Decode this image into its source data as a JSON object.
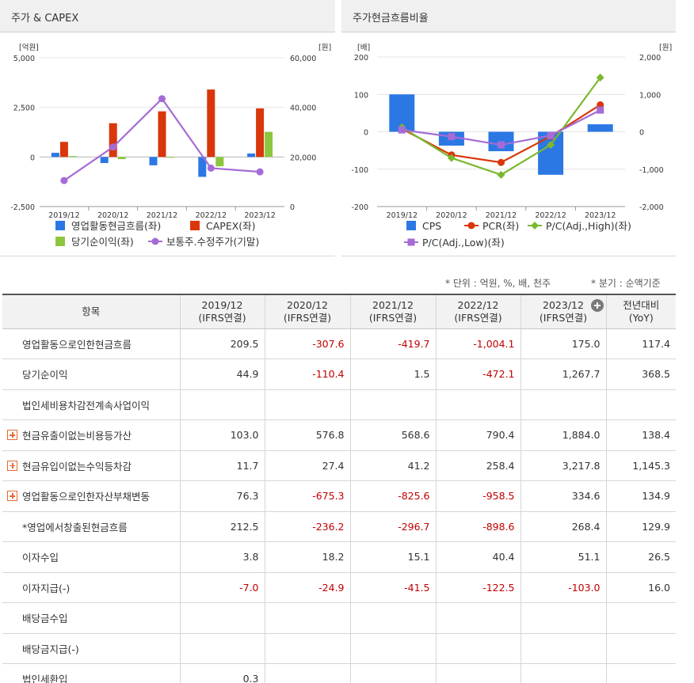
{
  "left_chart": {
    "title": "주가 & CAPEX",
    "chart_data": {
      "type": "bar",
      "categories": [
        "2019/12",
        "2020/12",
        "2021/12",
        "2022/12",
        "2023/12"
      ],
      "y_left": {
        "unit": "[억원]",
        "ticks": [
          "5,000",
          "2,500",
          "0",
          "-2,500"
        ],
        "range": [
          -2500,
          5000
        ]
      },
      "y_right": {
        "unit": "[원]",
        "ticks": [
          "60,000",
          "40,000",
          "20,000",
          "0"
        ],
        "range": [
          0,
          60000
        ]
      },
      "series": [
        {
          "name": "영업활동현금흐름(좌)",
          "type": "bar",
          "axis": "left",
          "color": "#2b78e4",
          "values": [
            209.5,
            -307.6,
            -419.7,
            -1004.1,
            175.0
          ]
        },
        {
          "name": "CAPEX(좌)",
          "type": "bar",
          "axis": "left",
          "color": "#d9360b",
          "values": [
            760,
            1700,
            2300,
            3400,
            2450
          ]
        },
        {
          "name": "당기순이익(좌)",
          "type": "bar",
          "axis": "left",
          "color": "#8cc63f",
          "values": [
            44.9,
            -110.4,
            1.5,
            -472.1,
            1267.7
          ]
        },
        {
          "name": "보통주.수정주가(기말)",
          "type": "line",
          "axis": "right",
          "color": "#a56bd6",
          "values": [
            10500,
            24000,
            43500,
            15500,
            14000
          ]
        }
      ]
    }
  },
  "right_chart": {
    "title": "주가현금흐름비율",
    "chart_data": {
      "type": "bar",
      "categories": [
        "2019/12",
        "2020/12",
        "2021/12",
        "2022/12",
        "2023/12"
      ],
      "y_left": {
        "unit": "[배]",
        "ticks": [
          "200",
          "100",
          "0",
          "-100",
          "-200"
        ],
        "range": [
          -200,
          200
        ]
      },
      "y_right": {
        "unit": "[원]",
        "ticks": [
          "2,000",
          "1,000",
          "0",
          "-1,000",
          "-2,000"
        ],
        "range": [
          -2000,
          2000
        ]
      },
      "series": [
        {
          "name": "CPS",
          "type": "bar",
          "axis": "right",
          "color": "#2b78e4",
          "values": [
            1000,
            -370,
            -520,
            -1150,
            200
          ]
        },
        {
          "name": "PCR(좌)",
          "type": "line",
          "axis": "left",
          "color": "#d9360b",
          "marker": "circle",
          "values": [
            8,
            -62,
            -82,
            -12,
            72
          ]
        },
        {
          "name": "P/C(Adj.,High)(좌)",
          "type": "line",
          "axis": "left",
          "color": "#7cb82f",
          "marker": "diamond",
          "values": [
            12,
            -70,
            -115,
            -35,
            145
          ]
        },
        {
          "name": "P/C(Adj.,Low)(좌)",
          "type": "line",
          "axis": "left",
          "color": "#a56bd6",
          "marker": "square",
          "values": [
            5,
            -13,
            -35,
            -10,
            58
          ]
        }
      ]
    }
  },
  "notes": {
    "unit": "* 단위 : 억원, %, 배, 천주",
    "quarter": "* 분기 : 순액기준"
  },
  "table": {
    "header_item": "항목",
    "columns": [
      {
        "year": "2019/12",
        "basis": "(IFRS연결)"
      },
      {
        "year": "2020/12",
        "basis": "(IFRS연결)"
      },
      {
        "year": "2021/12",
        "basis": "(IFRS연결)"
      },
      {
        "year": "2022/12",
        "basis": "(IFRS연결)"
      },
      {
        "year": "2023/12",
        "basis": "(IFRS연결)"
      }
    ],
    "yoy": {
      "line1": "전년대비",
      "line2": "(YoY)"
    },
    "rows": [
      {
        "label": "영업활동으로인한현금흐름",
        "expand": false,
        "values": [
          "209.5",
          "-307.6",
          "-419.7",
          "-1,004.1",
          "175.0"
        ],
        "yoy": "117.4"
      },
      {
        "label": "당기순이익",
        "expand": false,
        "values": [
          "44.9",
          "-110.4",
          "1.5",
          "-472.1",
          "1,267.7"
        ],
        "yoy": "368.5"
      },
      {
        "label": "법인세비용차감전계속사업이익",
        "expand": false,
        "values": [
          "",
          "",
          "",
          "",
          ""
        ],
        "yoy": ""
      },
      {
        "label": "현금유출이없는비용등가산",
        "expand": true,
        "values": [
          "103.0",
          "576.8",
          "568.6",
          "790.4",
          "1,884.0"
        ],
        "yoy": "138.4"
      },
      {
        "label": "현금유입이없는수익등차감",
        "expand": true,
        "values": [
          "11.7",
          "27.4",
          "41.2",
          "258.4",
          "3,217.8"
        ],
        "yoy": "1,145.3"
      },
      {
        "label": "영업활동으로인한자산부채변동",
        "expand": true,
        "values": [
          "76.3",
          "-675.3",
          "-825.6",
          "-958.5",
          "334.6"
        ],
        "yoy": "134.9"
      },
      {
        "label": "*영업에서창출된현금흐름",
        "expand": false,
        "values": [
          "212.5",
          "-236.2",
          "-296.7",
          "-898.6",
          "268.4"
        ],
        "yoy": "129.9"
      },
      {
        "label": "이자수입",
        "expand": false,
        "values": [
          "3.8",
          "18.2",
          "15.1",
          "40.4",
          "51.1"
        ],
        "yoy": "26.5"
      },
      {
        "label": "이자지급(-)",
        "expand": false,
        "values": [
          "-7.0",
          "-24.9",
          "-41.5",
          "-122.5",
          "-103.0"
        ],
        "yoy": "16.0"
      },
      {
        "label": "배당금수입",
        "expand": false,
        "values": [
          "",
          "",
          "",
          "",
          ""
        ],
        "yoy": ""
      },
      {
        "label": "배당금지급(-)",
        "expand": false,
        "values": [
          "",
          "",
          "",
          "",
          ""
        ],
        "yoy": ""
      },
      {
        "label": "법인세환입",
        "expand": false,
        "values": [
          "0.3",
          "",
          "",
          "",
          ""
        ],
        "yoy": ""
      }
    ]
  }
}
